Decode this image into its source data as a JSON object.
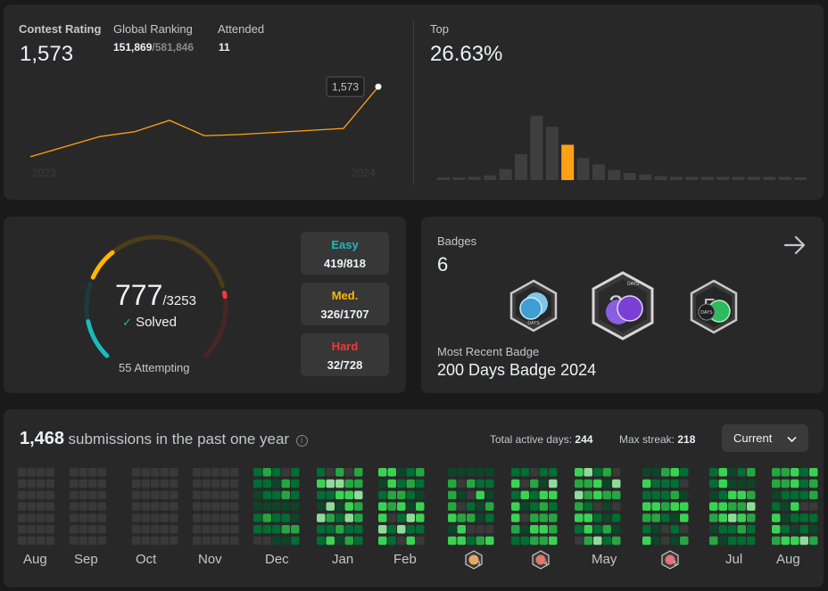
{
  "contest": {
    "rating_label": "Contest Rating",
    "rating_value": "1,573",
    "ranking_label": "Global Ranking",
    "ranking_value": "151,869",
    "ranking_total": "/581,846",
    "attended_label": "Attended",
    "attended_value": "11",
    "tooltip": "1,573",
    "year_start": "2023",
    "year_end": "2024",
    "top_label": "Top",
    "top_value": "26.63%",
    "line_color": "#ffa116",
    "highlight_color": "#ffa116"
  },
  "chart_data": [
    {
      "type": "line",
      "title": "",
      "xlabel": "",
      "ylabel": "",
      "x": [
        "2023",
        "",
        "",
        "",
        "",
        "",
        "",
        "",
        "",
        "",
        "2024"
      ],
      "series": [
        {
          "values": [
            1400,
            1425,
            1450,
            1462,
            1490,
            1452,
            1455,
            1460,
            1465,
            1470,
            1573
          ]
        }
      ],
      "ylim": [
        1380,
        1600
      ],
      "x_tick_labels": [
        "2023",
        "2024"
      ],
      "grid": false
    },
    {
      "type": "bar",
      "title": "",
      "values": [
        3,
        3,
        4,
        6,
        14,
        33,
        82,
        68,
        45,
        28,
        20,
        13,
        9,
        7,
        5,
        4,
        4,
        4,
        4,
        4,
        4,
        4,
        4,
        3,
        3
      ],
      "highlight_index": 8,
      "ylim": [
        0,
        100
      ],
      "grid": false
    }
  ],
  "solved": {
    "count": "777",
    "total": "/3253",
    "label": "Solved",
    "attempting": "55 Attempting",
    "easy_label": "Easy",
    "easy_value": "419/818",
    "medium_label": "Med.",
    "medium_value": "326/1707",
    "hard_label": "Hard",
    "hard_value": "32/728",
    "easy_color": "#1cbaba",
    "medium_color": "#ffb700",
    "hard_color": "#f63737",
    "easy_fraction": 0.512,
    "medium_fraction": 0.191,
    "hard_fraction": 0.044
  },
  "badges": {
    "label": "Badges",
    "count": "6",
    "recent_label": "Most Recent Badge",
    "recent_name": "200 Days Badge 2024",
    "badge1_text": "DAYS",
    "badge2_text": "DAYS",
    "badge3_text": "DAYS"
  },
  "submissions": {
    "count": "1,468",
    "label": "submissions in the past one year",
    "active_label": "Total active days:",
    "active_value": "244",
    "streak_label": "Max streak:",
    "streak_value": "218",
    "select_value": "Current",
    "months": [
      "Aug",
      "Sep",
      "Oct",
      "Nov",
      "Dec",
      "Jan",
      "Feb",
      "May",
      "Jul",
      "Aug"
    ],
    "badge_marks": [
      "3",
      "4",
      "5"
    ]
  }
}
